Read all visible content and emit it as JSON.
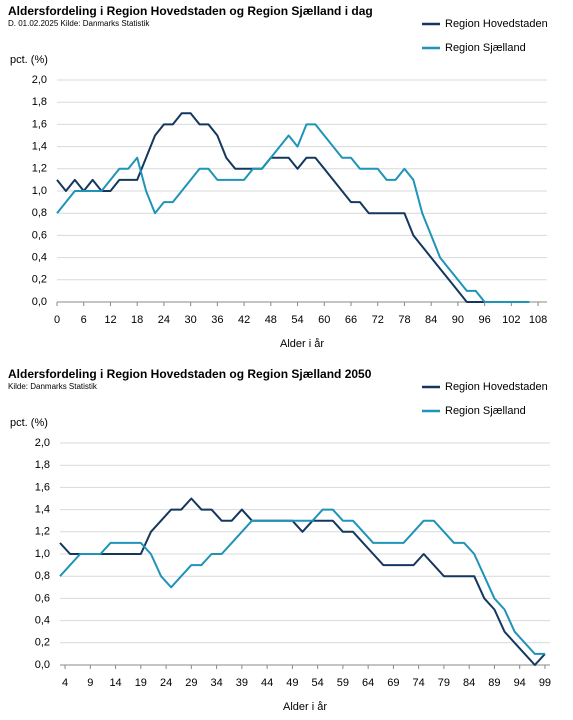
{
  "chart_data": [
    {
      "type": "line",
      "title": "Aldersfordeling i Region Hovedstaden og Region Sjælland i dag",
      "subtitle": "D. 01.02.2025 Kilde: Danmarks Statistik",
      "ylabel": "pct. (%)",
      "xlabel": "Alder i år",
      "legend": "top-right",
      "grid": true,
      "x": [
        0,
        2,
        4,
        6,
        8,
        10,
        12,
        14,
        16,
        18,
        20,
        22,
        24,
        26,
        28,
        30,
        32,
        34,
        36,
        38,
        40,
        42,
        44,
        46,
        48,
        50,
        52,
        54,
        56,
        58,
        60,
        62,
        64,
        66,
        68,
        70,
        72,
        74,
        76,
        78,
        80,
        82,
        84,
        86,
        88,
        90,
        92,
        94,
        96,
        98,
        100,
        102,
        104,
        106
      ],
      "xlim": [
        0,
        110
      ],
      "xticks": [
        0,
        6,
        12,
        18,
        24,
        30,
        36,
        42,
        48,
        54,
        60,
        66,
        72,
        78,
        84,
        90,
        96,
        102,
        108
      ],
      "ylim": [
        0,
        2
      ],
      "yticks": [
        {
          "value": 0,
          "label": "0,0"
        },
        {
          "value": 0.2,
          "label": "0,2"
        },
        {
          "value": 0.4,
          "label": "0,4"
        },
        {
          "value": 0.6,
          "label": "0,6"
        },
        {
          "value": 0.8,
          "label": "0,8"
        },
        {
          "value": 1,
          "label": "1,0"
        },
        {
          "value": 1.2,
          "label": "1,2"
        },
        {
          "value": 1.4,
          "label": "1,4"
        },
        {
          "value": 1.6,
          "label": "1,6"
        },
        {
          "value": 1.8,
          "label": "1,8"
        },
        {
          "value": 2,
          "label": "2,0"
        }
      ],
      "series": [
        {
          "name": "Region Hovedstaden",
          "color": "#14375e",
          "values": [
            1.1,
            1.0,
            1.1,
            1.0,
            1.1,
            1.0,
            1.0,
            1.1,
            1.1,
            1.1,
            1.3,
            1.5,
            1.6,
            1.6,
            1.7,
            1.7,
            1.6,
            1.6,
            1.5,
            1.3,
            1.2,
            1.2,
            1.2,
            1.2,
            1.3,
            1.3,
            1.3,
            1.2,
            1.3,
            1.3,
            1.2,
            1.1,
            1.0,
            0.9,
            0.9,
            0.8,
            0.8,
            0.8,
            0.8,
            0.8,
            0.6,
            0.5,
            0.4,
            0.3,
            0.2,
            0.1,
            0.0,
            0.0,
            0.0,
            0.0,
            0.0,
            0.0,
            0.0,
            0.0
          ]
        },
        {
          "name": "Region Sjælland",
          "color": "#1f94b8",
          "values": [
            0.8,
            0.9,
            1.0,
            1.0,
            1.0,
            1.0,
            1.1,
            1.2,
            1.2,
            1.3,
            1.0,
            0.8,
            0.9,
            0.9,
            1.0,
            1.1,
            1.2,
            1.2,
            1.1,
            1.1,
            1.1,
            1.1,
            1.2,
            1.2,
            1.3,
            1.4,
            1.5,
            1.4,
            1.6,
            1.6,
            1.5,
            1.4,
            1.3,
            1.3,
            1.2,
            1.2,
            1.2,
            1.1,
            1.1,
            1.2,
            1.1,
            0.8,
            0.6,
            0.4,
            0.3,
            0.2,
            0.1,
            0.1,
            0.0,
            0.0,
            0.0,
            0.0,
            0.0,
            0.0
          ]
        }
      ]
    },
    {
      "type": "line",
      "title": "Aldersfordeling i Region Hovedstaden og Region Sjælland 2050",
      "subtitle": "Kilde: Danmarks Statistik",
      "ylabel": "pct. (%)",
      "xlabel": "Alder i år",
      "legend": "top-right",
      "grid": true,
      "x": [
        3,
        5,
        7,
        9,
        11,
        13,
        15,
        17,
        19,
        21,
        23,
        25,
        27,
        29,
        31,
        33,
        35,
        37,
        39,
        41,
        43,
        45,
        47,
        49,
        51,
        53,
        55,
        57,
        59,
        61,
        63,
        65,
        67,
        69,
        71,
        73,
        75,
        77,
        79,
        81,
        83,
        85,
        87,
        89,
        91,
        93,
        95,
        97,
        99
      ],
      "xlim": [
        3,
        100
      ],
      "xticks": [
        4,
        9,
        14,
        19,
        24,
        29,
        34,
        39,
        44,
        49,
        54,
        59,
        64,
        69,
        74,
        79,
        84,
        89,
        94,
        99
      ],
      "ylim": [
        0,
        2
      ],
      "yticks": [
        {
          "value": 0,
          "label": "0,0"
        },
        {
          "value": 0.2,
          "label": "0,2"
        },
        {
          "value": 0.4,
          "label": "0,4"
        },
        {
          "value": 0.6,
          "label": "0,6"
        },
        {
          "value": 0.8,
          "label": "0,8"
        },
        {
          "value": 1,
          "label": "1,0"
        },
        {
          "value": 1.2,
          "label": "1,2"
        },
        {
          "value": 1.4,
          "label": "1,4"
        },
        {
          "value": 1.6,
          "label": "1,6"
        },
        {
          "value": 1.8,
          "label": "1,8"
        },
        {
          "value": 2,
          "label": "2,0"
        }
      ],
      "series": [
        {
          "name": "Region Hovedstaden",
          "color": "#14375e",
          "values": [
            1.1,
            1.0,
            1.0,
            1.0,
            1.0,
            1.0,
            1.0,
            1.0,
            1.0,
            1.2,
            1.3,
            1.4,
            1.4,
            1.5,
            1.4,
            1.4,
            1.3,
            1.3,
            1.4,
            1.3,
            1.3,
            1.3,
            1.3,
            1.3,
            1.2,
            1.3,
            1.3,
            1.3,
            1.2,
            1.2,
            1.1,
            1.0,
            0.9,
            0.9,
            0.9,
            0.9,
            1.0,
            0.9,
            0.8,
            0.8,
            0.8,
            0.8,
            0.6,
            0.5,
            0.3,
            0.2,
            0.1,
            0.0,
            0.1
          ]
        },
        {
          "name": "Region Sjælland",
          "color": "#1f94b8",
          "values": [
            0.8,
            0.9,
            1.0,
            1.0,
            1.0,
            1.1,
            1.1,
            1.1,
            1.1,
            1.0,
            0.8,
            0.7,
            0.8,
            0.9,
            0.9,
            1.0,
            1.0,
            1.1,
            1.2,
            1.3,
            1.3,
            1.3,
            1.3,
            1.3,
            1.3,
            1.3,
            1.4,
            1.4,
            1.3,
            1.3,
            1.2,
            1.1,
            1.1,
            1.1,
            1.1,
            1.2,
            1.3,
            1.3,
            1.2,
            1.1,
            1.1,
            1.0,
            0.8,
            0.6,
            0.5,
            0.3,
            0.2,
            0.1,
            0.1
          ]
        }
      ]
    }
  ]
}
